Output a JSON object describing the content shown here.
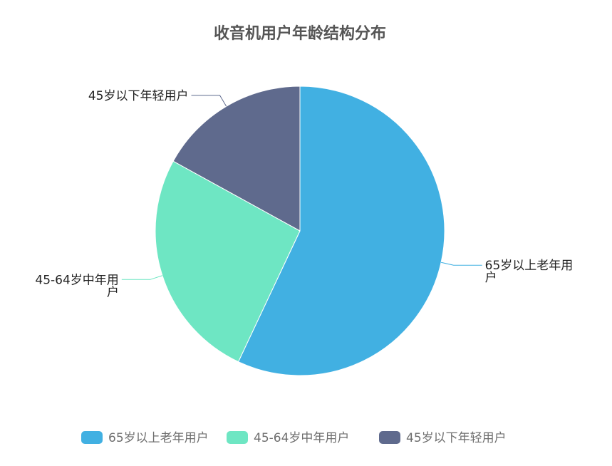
{
  "chart_data": {
    "type": "pie",
    "title": "收音机用户年龄结构分布",
    "slices": [
      {
        "name": "65岁以上老年用户",
        "value": 57,
        "color": "#41b0e2"
      },
      {
        "name": "45-64岁中年用户",
        "value": 26,
        "color": "#6ee6c3"
      },
      {
        "name": "45岁以下年轻用户",
        "value": 17,
        "color": "#5f6a8d"
      }
    ],
    "legend": {
      "position": "bottom",
      "items": [
        "65岁以上老年用户",
        "45-64岁中年用户",
        "45岁以下年轻用户"
      ]
    }
  }
}
